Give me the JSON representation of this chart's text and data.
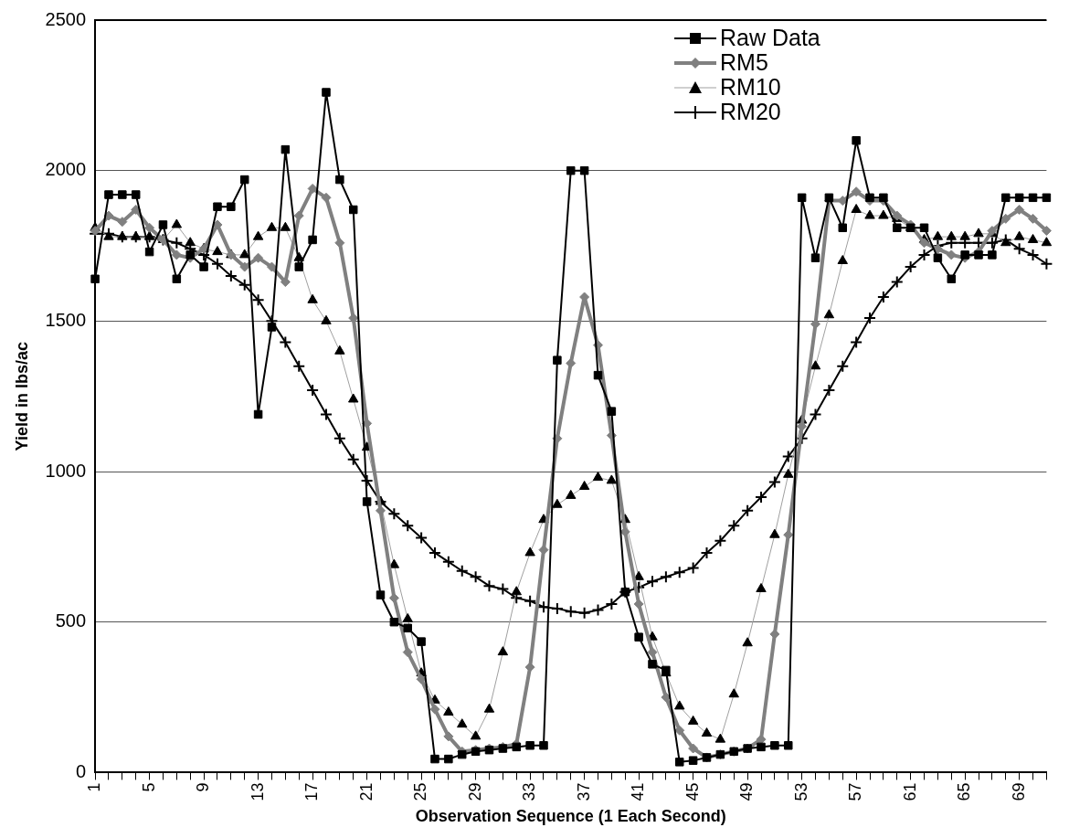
{
  "chart_data": {
    "type": "line",
    "xlabel": "Observation Sequence (1 Each Second)",
    "ylabel": "Yield in lbs/ac",
    "categories": [
      "1",
      null,
      null,
      null,
      "5",
      null,
      null,
      null,
      "9",
      null,
      null,
      null,
      "13",
      null,
      null,
      null,
      "17",
      null,
      null,
      null,
      "21",
      null,
      null,
      null,
      "25",
      null,
      null,
      null,
      "29",
      null,
      null,
      null,
      "33",
      null,
      null,
      null,
      "37",
      null,
      null,
      null,
      "41",
      null,
      null,
      null,
      "45",
      null,
      null,
      null,
      "49",
      null,
      null,
      null,
      "53",
      null,
      null,
      null,
      "57",
      null,
      null,
      null,
      "61",
      null,
      null,
      null,
      "65",
      null,
      null,
      null,
      "69",
      null,
      null
    ],
    "ylim": [
      0,
      2500
    ],
    "yticks": [
      0,
      500,
      1000,
      1500,
      2000,
      2500
    ],
    "grid": "y",
    "legend": "top right",
    "line_style": "solid",
    "series": [
      {
        "name": "Raw Data",
        "color": "#000000",
        "marker": "square",
        "values": [
          1640,
          1920,
          1920,
          1920,
          1730,
          1820,
          1640,
          1720,
          1680,
          1880,
          1880,
          1970,
          1190,
          1480,
          2070,
          1680,
          1770,
          2260,
          1970,
          1870,
          900,
          590,
          500,
          480,
          435,
          45,
          45,
          60,
          70,
          75,
          80,
          85,
          90,
          90,
          1370,
          2000,
          2000,
          1320,
          1200,
          600,
          450,
          360,
          340,
          35,
          40,
          50,
          60,
          70,
          80,
          85,
          90,
          90,
          1910,
          1710,
          1910,
          1810,
          2100,
          1910,
          1910,
          1810,
          1810,
          1810,
          1710,
          1640,
          1720,
          1720,
          1720,
          1910,
          1910,
          1910,
          1910
        ]
      },
      {
        "name": "RM5",
        "color": "#808080",
        "marker": "diamond",
        "values": [
          1800,
          1850,
          1830,
          1870,
          1810,
          1770,
          1720,
          1710,
          1740,
          1820,
          1720,
          1680,
          1710,
          1680,
          1630,
          1850,
          1940,
          1910,
          1760,
          1510,
          1160,
          870,
          580,
          400,
          310,
          210,
          120,
          70,
          75,
          80,
          85,
          95,
          350,
          740,
          1110,
          1360,
          1580,
          1420,
          1120,
          800,
          560,
          400,
          250,
          140,
          80,
          50,
          60,
          70,
          80,
          110,
          460,
          790,
          1150,
          1490,
          1900,
          1900,
          1930,
          1900,
          1900,
          1850,
          1820,
          1760,
          1740,
          1720,
          1710,
          1730,
          1800,
          1840,
          1870,
          1840,
          1800
        ]
      },
      {
        "name": "RM10",
        "color": "#a0a0a0",
        "marker": "triangle",
        "values": [
          1810,
          1780,
          1780,
          1780,
          1780,
          1770,
          1820,
          1760,
          1740,
          1730,
          1720,
          1720,
          1780,
          1810,
          1810,
          1710,
          1570,
          1500,
          1400,
          1240,
          1080,
          900,
          690,
          510,
          330,
          240,
          200,
          160,
          120,
          210,
          400,
          600,
          730,
          840,
          890,
          920,
          950,
          980,
          970,
          840,
          650,
          450,
          330,
          220,
          170,
          130,
          110,
          260,
          430,
          610,
          790,
          990,
          1170,
          1350,
          1520,
          1700,
          1870,
          1850,
          1850,
          1840,
          1810,
          1770,
          1780,
          1780,
          1780,
          1790,
          1790,
          1760,
          1780,
          1770,
          1760
        ]
      },
      {
        "name": "RM20",
        "color": "#000000",
        "marker": "cross",
        "values": [
          1790,
          1790,
          1780,
          1780,
          1780,
          1770,
          1760,
          1740,
          1720,
          1690,
          1650,
          1620,
          1570,
          1500,
          1430,
          1350,
          1270,
          1190,
          1110,
          1040,
          970,
          900,
          860,
          820,
          780,
          730,
          700,
          670,
          650,
          620,
          610,
          580,
          570,
          550,
          545,
          535,
          530,
          540,
          560,
          600,
          615,
          635,
          650,
          665,
          680,
          730,
          770,
          820,
          870,
          915,
          965,
          1050,
          1110,
          1190,
          1270,
          1350,
          1430,
          1510,
          1580,
          1630,
          1680,
          1720,
          1750,
          1760,
          1760,
          1760,
          1760,
          1770,
          1740,
          1720,
          1690
        ]
      }
    ]
  }
}
